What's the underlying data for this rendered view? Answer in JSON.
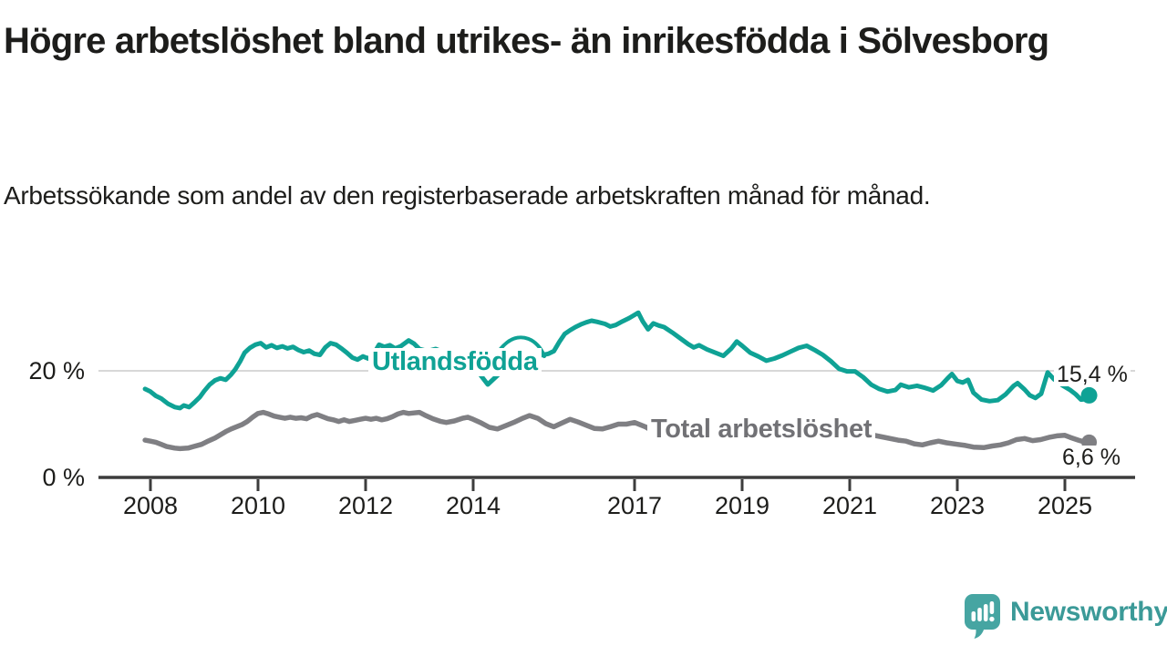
{
  "header": {
    "title": "Högre arbetslöshet bland utrikes- än inrikesfödda i Sölvesborg",
    "subtitle": "Arbetssökande som andel av den registerbaserade arbetskraften månad för månad."
  },
  "footer": {
    "brand": "Newsworthy",
    "logo_icon": "bar-chart-speech-bubble-icon"
  },
  "colors": {
    "foreign_line": "#0fa295",
    "total_line": "#7f7f83",
    "total_label": "#717175",
    "text": "#1d1d1b",
    "grid": "#d8d8d8",
    "axis": "#3c3c3c",
    "brand_teal": "#3b9a98",
    "logo_tile": "#46a5a2"
  },
  "chart_data": {
    "type": "line",
    "title": "Högre arbetslöshet bland utrikes- än inrikesfödda i Sölvesborg",
    "subtitle": "Arbetssökande som andel av den registerbaserade arbetskraften månad för månad.",
    "xlabel": "",
    "ylabel": "",
    "y_format": "percent",
    "xlim": [
      2007.85,
      2026.35
    ],
    "ylim": [
      0,
      33.5
    ],
    "grid": "single-horizontal-at-20",
    "legend_position": "inline-labels-on-lines",
    "x_ticks": [
      {
        "value": 2008,
        "label": "2008"
      },
      {
        "value": 2010,
        "label": "2010"
      },
      {
        "value": 2012,
        "label": "2012"
      },
      {
        "value": 2014,
        "label": "2014"
      },
      {
        "value": 2017,
        "label": "2017"
      },
      {
        "value": 2019,
        "label": "2019"
      },
      {
        "value": 2021,
        "label": "2021"
      },
      {
        "value": 2023,
        "label": "2023"
      },
      {
        "value": 2025,
        "label": "2025"
      }
    ],
    "y_ticks": [
      {
        "value": 0,
        "label": "0 %"
      },
      {
        "value": 20,
        "label": "20 %"
      }
    ],
    "annotation": {
      "type": "arrow",
      "from_label": "Utlandsfödda",
      "points_at_year": 2014.3
    },
    "series": [
      {
        "name": "Utlandsfödda",
        "color": "#0fa295",
        "end_label": "15,4 %",
        "end_value": 15.4,
        "points": [
          [
            2007.9,
            16.6
          ],
          [
            2008.0,
            16.1
          ],
          [
            2008.1,
            15.3
          ],
          [
            2008.2,
            14.8
          ],
          [
            2008.33,
            13.8
          ],
          [
            2008.45,
            13.2
          ],
          [
            2008.55,
            13.0
          ],
          [
            2008.62,
            13.5
          ],
          [
            2008.72,
            13.2
          ],
          [
            2008.82,
            14.1
          ],
          [
            2008.92,
            15.1
          ],
          [
            2009.0,
            16.2
          ],
          [
            2009.1,
            17.4
          ],
          [
            2009.2,
            18.2
          ],
          [
            2009.3,
            18.6
          ],
          [
            2009.4,
            18.3
          ],
          [
            2009.5,
            19.3
          ],
          [
            2009.58,
            20.3
          ],
          [
            2009.67,
            21.8
          ],
          [
            2009.75,
            23.4
          ],
          [
            2009.85,
            24.3
          ],
          [
            2009.95,
            24.9
          ],
          [
            2010.05,
            25.2
          ],
          [
            2010.15,
            24.4
          ],
          [
            2010.25,
            24.8
          ],
          [
            2010.35,
            24.3
          ],
          [
            2010.45,
            24.6
          ],
          [
            2010.55,
            24.2
          ],
          [
            2010.65,
            24.5
          ],
          [
            2010.75,
            23.9
          ],
          [
            2010.85,
            23.5
          ],
          [
            2010.95,
            23.8
          ],
          [
            2011.05,
            23.2
          ],
          [
            2011.15,
            23.0
          ],
          [
            2011.25,
            24.4
          ],
          [
            2011.35,
            25.2
          ],
          [
            2011.45,
            24.9
          ],
          [
            2011.55,
            24.2
          ],
          [
            2011.65,
            23.4
          ],
          [
            2011.75,
            22.5
          ],
          [
            2011.85,
            22.1
          ],
          [
            2011.95,
            22.7
          ],
          [
            2012.05,
            22.3
          ],
          [
            2012.15,
            23.2
          ],
          [
            2012.25,
            24.9
          ],
          [
            2012.35,
            24.5
          ],
          [
            2012.45,
            24.8
          ],
          [
            2012.55,
            24.2
          ],
          [
            2012.65,
            24.6
          ],
          [
            2012.8,
            25.7
          ],
          [
            2012.9,
            25.1
          ],
          [
            2013.0,
            24.1
          ],
          [
            2013.15,
            23.7
          ],
          [
            2013.3,
            24.1
          ],
          [
            2013.45,
            23.5
          ],
          [
            2013.6,
            23.8
          ],
          [
            2013.75,
            23.1
          ],
          [
            2013.9,
            22.5
          ],
          [
            2014.05,
            21.8
          ],
          [
            2014.2,
            21.2
          ],
          [
            2014.35,
            20.9
          ],
          [
            2014.5,
            21.7
          ],
          [
            2014.65,
            22.5
          ],
          [
            2014.8,
            23.1
          ],
          [
            2014.95,
            23.3
          ],
          [
            2015.1,
            23.0
          ],
          [
            2015.25,
            22.9
          ],
          [
            2015.4,
            23.2
          ],
          [
            2015.5,
            23.7
          ],
          [
            2015.6,
            25.4
          ],
          [
            2015.7,
            26.9
          ],
          [
            2015.8,
            27.6
          ],
          [
            2015.9,
            28.2
          ],
          [
            2016.0,
            28.7
          ],
          [
            2016.1,
            29.1
          ],
          [
            2016.2,
            29.4
          ],
          [
            2016.3,
            29.2
          ],
          [
            2016.45,
            28.8
          ],
          [
            2016.55,
            28.3
          ],
          [
            2016.65,
            28.6
          ],
          [
            2016.78,
            29.3
          ],
          [
            2016.9,
            29.9
          ],
          [
            2017.0,
            30.5
          ],
          [
            2017.07,
            30.9
          ],
          [
            2017.15,
            29.3
          ],
          [
            2017.25,
            27.8
          ],
          [
            2017.35,
            28.9
          ],
          [
            2017.45,
            28.5
          ],
          [
            2017.55,
            28.2
          ],
          [
            2017.7,
            27.2
          ],
          [
            2017.85,
            26.1
          ],
          [
            2018.0,
            25.0
          ],
          [
            2018.1,
            24.4
          ],
          [
            2018.2,
            24.8
          ],
          [
            2018.35,
            24.0
          ],
          [
            2018.5,
            23.4
          ],
          [
            2018.65,
            22.8
          ],
          [
            2018.8,
            24.2
          ],
          [
            2018.9,
            25.5
          ],
          [
            2019.0,
            24.7
          ],
          [
            2019.15,
            23.4
          ],
          [
            2019.3,
            22.7
          ],
          [
            2019.45,
            21.9
          ],
          [
            2019.6,
            22.3
          ],
          [
            2019.75,
            22.9
          ],
          [
            2019.9,
            23.6
          ],
          [
            2020.05,
            24.3
          ],
          [
            2020.2,
            24.7
          ],
          [
            2020.35,
            23.9
          ],
          [
            2020.5,
            23.0
          ],
          [
            2020.65,
            21.8
          ],
          [
            2020.8,
            20.4
          ],
          [
            2020.95,
            19.9
          ],
          [
            2021.1,
            19.9
          ],
          [
            2021.25,
            18.8
          ],
          [
            2021.4,
            17.4
          ],
          [
            2021.55,
            16.6
          ],
          [
            2021.7,
            16.1
          ],
          [
            2021.85,
            16.4
          ],
          [
            2021.95,
            17.4
          ],
          [
            2022.1,
            16.9
          ],
          [
            2022.25,
            17.2
          ],
          [
            2022.4,
            16.8
          ],
          [
            2022.55,
            16.3
          ],
          [
            2022.7,
            17.3
          ],
          [
            2022.82,
            18.6
          ],
          [
            2022.9,
            19.4
          ],
          [
            2023.0,
            18.1
          ],
          [
            2023.1,
            17.8
          ],
          [
            2023.2,
            18.3
          ],
          [
            2023.3,
            15.9
          ],
          [
            2023.45,
            14.6
          ],
          [
            2023.6,
            14.3
          ],
          [
            2023.75,
            14.5
          ],
          [
            2023.9,
            15.6
          ],
          [
            2024.05,
            17.2
          ],
          [
            2024.12,
            17.7
          ],
          [
            2024.25,
            16.5
          ],
          [
            2024.35,
            15.4
          ],
          [
            2024.45,
            14.9
          ],
          [
            2024.56,
            15.7
          ],
          [
            2024.68,
            19.7
          ],
          [
            2024.8,
            18.4
          ],
          [
            2024.95,
            17.3
          ],
          [
            2025.1,
            16.4
          ],
          [
            2025.2,
            15.6
          ],
          [
            2025.3,
            14.6
          ],
          [
            2025.38,
            14.7
          ],
          [
            2025.45,
            15.4
          ]
        ]
      },
      {
        "name": "Total arbetslöshet",
        "color": "#7f7f83",
        "end_label": "6,6 %",
        "end_value": 6.6,
        "points": [
          [
            2007.9,
            7.0
          ],
          [
            2008.0,
            6.8
          ],
          [
            2008.1,
            6.6
          ],
          [
            2008.2,
            6.2
          ],
          [
            2008.3,
            5.8
          ],
          [
            2008.45,
            5.5
          ],
          [
            2008.55,
            5.4
          ],
          [
            2008.7,
            5.5
          ],
          [
            2008.8,
            5.8
          ],
          [
            2008.95,
            6.2
          ],
          [
            2009.05,
            6.7
          ],
          [
            2009.2,
            7.4
          ],
          [
            2009.3,
            8.0
          ],
          [
            2009.4,
            8.6
          ],
          [
            2009.5,
            9.1
          ],
          [
            2009.6,
            9.5
          ],
          [
            2009.7,
            9.9
          ],
          [
            2009.8,
            10.5
          ],
          [
            2009.9,
            11.3
          ],
          [
            2010.0,
            12.0
          ],
          [
            2010.1,
            12.2
          ],
          [
            2010.2,
            11.9
          ],
          [
            2010.3,
            11.5
          ],
          [
            2010.4,
            11.3
          ],
          [
            2010.5,
            11.1
          ],
          [
            2010.6,
            11.3
          ],
          [
            2010.7,
            11.1
          ],
          [
            2010.8,
            11.2
          ],
          [
            2010.9,
            11.0
          ],
          [
            2011.0,
            11.5
          ],
          [
            2011.1,
            11.8
          ],
          [
            2011.2,
            11.4
          ],
          [
            2011.3,
            11.0
          ],
          [
            2011.4,
            10.8
          ],
          [
            2011.5,
            10.5
          ],
          [
            2011.6,
            10.8
          ],
          [
            2011.7,
            10.5
          ],
          [
            2011.8,
            10.7
          ],
          [
            2011.9,
            10.9
          ],
          [
            2012.0,
            11.1
          ],
          [
            2012.1,
            10.9
          ],
          [
            2012.2,
            11.1
          ],
          [
            2012.3,
            10.8
          ],
          [
            2012.4,
            11.0
          ],
          [
            2012.5,
            11.4
          ],
          [
            2012.6,
            11.9
          ],
          [
            2012.7,
            12.2
          ],
          [
            2012.8,
            12.0
          ],
          [
            2012.9,
            12.1
          ],
          [
            2013.0,
            12.2
          ],
          [
            2013.1,
            11.7
          ],
          [
            2013.25,
            11.0
          ],
          [
            2013.4,
            10.5
          ],
          [
            2013.5,
            10.3
          ],
          [
            2013.65,
            10.6
          ],
          [
            2013.8,
            11.1
          ],
          [
            2013.9,
            11.3
          ],
          [
            2014.0,
            10.9
          ],
          [
            2014.15,
            10.2
          ],
          [
            2014.3,
            9.4
          ],
          [
            2014.45,
            9.1
          ],
          [
            2014.6,
            9.7
          ],
          [
            2014.75,
            10.3
          ],
          [
            2014.9,
            11.0
          ],
          [
            2015.05,
            11.6
          ],
          [
            2015.2,
            11.1
          ],
          [
            2015.35,
            10.1
          ],
          [
            2015.5,
            9.5
          ],
          [
            2015.65,
            10.2
          ],
          [
            2015.8,
            10.9
          ],
          [
            2015.95,
            10.4
          ],
          [
            2016.1,
            9.8
          ],
          [
            2016.25,
            9.2
          ],
          [
            2016.4,
            9.1
          ],
          [
            2016.55,
            9.5
          ],
          [
            2016.7,
            10.0
          ],
          [
            2016.85,
            10.0
          ],
          [
            2017.0,
            10.3
          ],
          [
            2017.1,
            9.9
          ],
          [
            2017.2,
            9.5
          ],
          [
            2017.3,
            8.9
          ],
          [
            2017.4,
            8.3
          ],
          [
            2017.5,
            7.9
          ],
          [
            2017.65,
            7.6
          ],
          [
            2017.8,
            7.9
          ],
          [
            2018.0,
            8.2
          ],
          [
            2018.3,
            8.5
          ],
          [
            2018.6,
            8.3
          ],
          [
            2019.0,
            8.6
          ],
          [
            2019.4,
            8.3
          ],
          [
            2019.8,
            8.8
          ],
          [
            2020.1,
            9.5
          ],
          [
            2020.4,
            9.9
          ],
          [
            2020.7,
            9.4
          ],
          [
            2021.0,
            8.8
          ],
          [
            2021.3,
            8.2
          ],
          [
            2021.6,
            7.6
          ],
          [
            2021.9,
            7.0
          ],
          [
            2022.05,
            6.8
          ],
          [
            2022.2,
            6.3
          ],
          [
            2022.35,
            6.1
          ],
          [
            2022.5,
            6.5
          ],
          [
            2022.65,
            6.8
          ],
          [
            2022.8,
            6.5
          ],
          [
            2023.0,
            6.2
          ],
          [
            2023.15,
            6.0
          ],
          [
            2023.3,
            5.7
          ],
          [
            2023.5,
            5.6
          ],
          [
            2023.65,
            5.9
          ],
          [
            2023.8,
            6.1
          ],
          [
            2023.95,
            6.5
          ],
          [
            2024.1,
            7.1
          ],
          [
            2024.25,
            7.3
          ],
          [
            2024.4,
            6.9
          ],
          [
            2024.55,
            7.1
          ],
          [
            2024.7,
            7.5
          ],
          [
            2024.85,
            7.8
          ],
          [
            2025.0,
            7.9
          ],
          [
            2025.1,
            7.5
          ],
          [
            2025.25,
            7.0
          ],
          [
            2025.35,
            6.7
          ],
          [
            2025.45,
            6.6
          ]
        ]
      }
    ]
  }
}
